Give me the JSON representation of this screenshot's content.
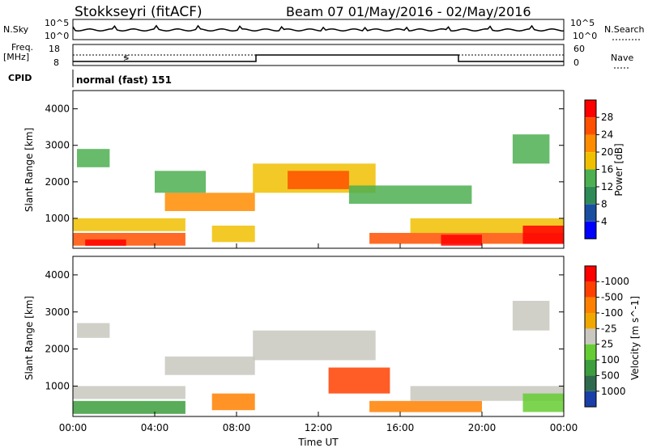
{
  "header": {
    "station": "Stokkseyri (fitACF)",
    "beam_date": "Beam 07  01/May/2016 - 02/May/2016"
  },
  "strips": {
    "nsky_label": "N.Sky",
    "nsky_top": "10^5",
    "nsky_bottom": "10^0",
    "nsky_right_top": "10^5",
    "nsky_right_bottom": "10^0",
    "nsearch_label": "N.Search",
    "freq_label": "Freq.",
    "freq_unit": "[MHz]",
    "freq_top": "18",
    "freq_bottom": "8",
    "nave_top": "60",
    "nave_bottom": "0",
    "nave_label": "Nave",
    "cpid_label": "CPID",
    "cpid_text": "normal (fast) 151"
  },
  "chart_data": [
    {
      "type": "heatmap",
      "name": "power",
      "ylabel": "Slant Range [km]",
      "ylim": [
        180,
        4500
      ],
      "yticks": [
        "1000",
        "2000",
        "3000",
        "4000"
      ],
      "xticks": [
        "00:00",
        "04:00",
        "08:00",
        "12:00",
        "16:00",
        "20:00",
        "00:00"
      ],
      "xlim_hours": [
        0,
        24
      ],
      "colorbar_label": "Power [dB]",
      "colorbar_ticks": [
        "4",
        "8",
        "12",
        "16",
        "20",
        "24",
        "28"
      ],
      "colorbar_colors": [
        "#0000ff",
        "#1a4fa0",
        "#2e8b57",
        "#4caf50",
        "#f0c000",
        "#ff8c00",
        "#ff5000",
        "#ff0000"
      ],
      "regions": [
        {
          "h0": 0.2,
          "h1": 1.8,
          "r0": 2400,
          "r1": 2900,
          "v": 13
        },
        {
          "h0": 0.0,
          "h1": 5.5,
          "r0": 650,
          "r1": 1000,
          "v": 16
        },
        {
          "h0": 0.0,
          "h1": 5.5,
          "r0": 250,
          "r1": 600,
          "v": 22
        },
        {
          "h0": 0.6,
          "h1": 2.6,
          "r0": 250,
          "r1": 420,
          "v": 29
        },
        {
          "h0": 4.5,
          "h1": 8.9,
          "r0": 1200,
          "r1": 1700,
          "v": 18
        },
        {
          "h0": 4.0,
          "h1": 6.5,
          "r0": 1700,
          "r1": 2300,
          "v": 12
        },
        {
          "h0": 6.8,
          "h1": 8.9,
          "r0": 350,
          "r1": 800,
          "v": 14
        },
        {
          "h0": 8.8,
          "h1": 14.8,
          "r0": 1700,
          "r1": 2500,
          "v": 17
        },
        {
          "h0": 10.5,
          "h1": 13.5,
          "r0": 1800,
          "r1": 2300,
          "v": 22
        },
        {
          "h0": 13.5,
          "h1": 19.5,
          "r0": 1400,
          "r1": 1900,
          "v": 10
        },
        {
          "h0": 14.5,
          "h1": 24.0,
          "r0": 300,
          "r1": 600,
          "v": 23
        },
        {
          "h0": 18.0,
          "h1": 20.0,
          "r0": 250,
          "r1": 550,
          "v": 29
        },
        {
          "h0": 16.5,
          "h1": 24.0,
          "r0": 600,
          "r1": 1000,
          "v": 16
        },
        {
          "h0": 21.5,
          "h1": 23.3,
          "r0": 2500,
          "r1": 3300,
          "v": 12
        },
        {
          "h0": 22.0,
          "h1": 24.0,
          "r0": 300,
          "r1": 800,
          "v": 27
        }
      ]
    },
    {
      "type": "heatmap",
      "name": "velocity",
      "ylabel": "Slant Range [km]",
      "ylim": [
        180,
        4500
      ],
      "yticks": [
        "1000",
        "2000",
        "3000",
        "4000"
      ],
      "xticks": [
        "00:00",
        "04:00",
        "08:00",
        "12:00",
        "16:00",
        "20:00",
        "00:00"
      ],
      "xlim_hours": [
        0,
        24
      ],
      "xlabel": "Time UT",
      "colorbar_label": "Velocity [m s^-1]",
      "colorbar_ticks": [
        "1000",
        "500",
        "100",
        "25",
        "-25",
        "-100",
        "-500",
        "-1000"
      ],
      "colorbar_colors": [
        "#1a3fa8",
        "#2e6b4e",
        "#3c9e3c",
        "#66cc33",
        "#c8c8c0",
        "#f0a800",
        "#ff8000",
        "#ff4000",
        "#ff0000"
      ],
      "regions": [
        {
          "h0": 0.2,
          "h1": 1.8,
          "r0": 2300,
          "r1": 2700,
          "v": 0
        },
        {
          "h0": 4.5,
          "h1": 8.9,
          "r0": 1300,
          "r1": 1800,
          "v": 0
        },
        {
          "h0": 0.0,
          "h1": 5.5,
          "r0": 650,
          "r1": 1000,
          "v": 0
        },
        {
          "h0": 0.0,
          "h1": 5.5,
          "r0": 250,
          "r1": 600,
          "v": 150
        },
        {
          "h0": 6.8,
          "h1": 8.9,
          "r0": 350,
          "r1": 800,
          "v": -150
        },
        {
          "h0": 8.8,
          "h1": 14.8,
          "r0": 1700,
          "r1": 2500,
          "v": 0
        },
        {
          "h0": 12.5,
          "h1": 15.5,
          "r0": 800,
          "r1": 1500,
          "v": -600
        },
        {
          "h0": 14.5,
          "h1": 20.0,
          "r0": 300,
          "r1": 600,
          "v": -150
        },
        {
          "h0": 16.5,
          "h1": 24.0,
          "r0": 600,
          "r1": 1000,
          "v": 0
        },
        {
          "h0": 21.5,
          "h1": 23.3,
          "r0": 2500,
          "r1": 3300,
          "v": 0
        },
        {
          "h0": 22.0,
          "h1": 24.0,
          "r0": 300,
          "r1": 800,
          "v": 60
        }
      ]
    }
  ]
}
